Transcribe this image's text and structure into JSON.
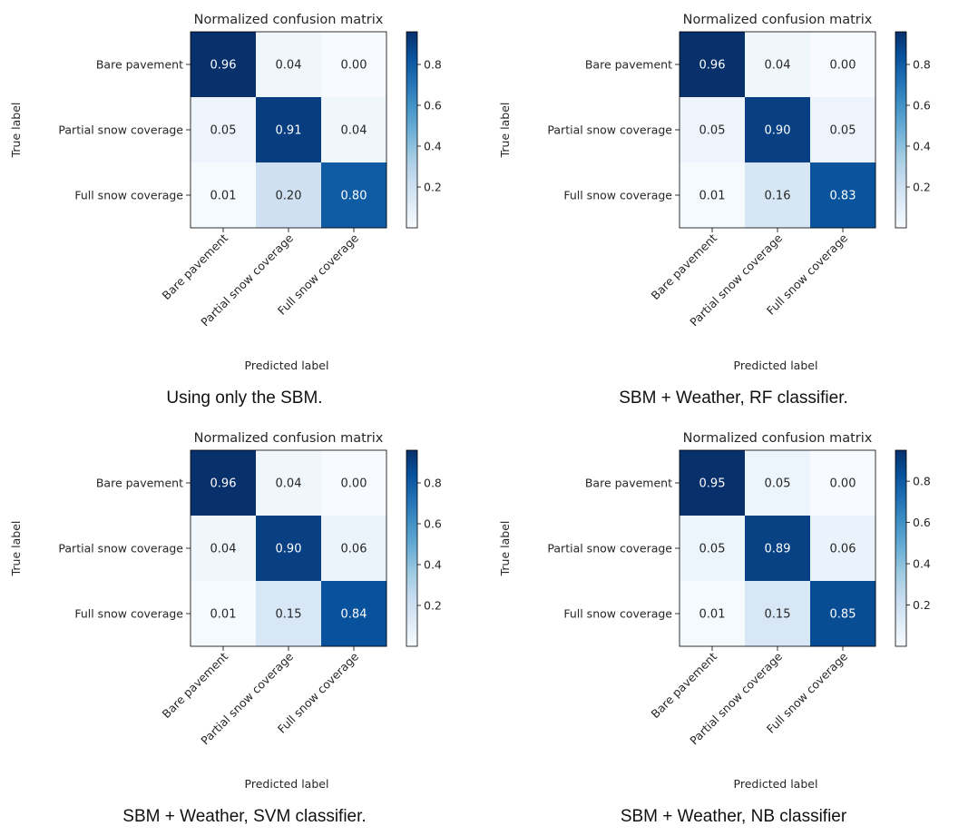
{
  "chart_data": [
    {
      "type": "heatmap",
      "title": "Normalized confusion matrix",
      "caption": "Using only the SBM.",
      "xlabel": "Predicted label",
      "ylabel": "True label",
      "x_categories": [
        "Bare pavement",
        "Partial snow coverage",
        "Full snow coverage"
      ],
      "y_categories": [
        "Bare pavement",
        "Partial snow coverage",
        "Full snow coverage"
      ],
      "values": [
        [
          0.96,
          0.04,
          0.0
        ],
        [
          0.05,
          0.91,
          0.04
        ],
        [
          0.01,
          0.2,
          0.8
        ]
      ],
      "colorbar": {
        "colormap": "Blues",
        "range": [
          0.0,
          0.96
        ],
        "ticks": [
          "0.2",
          "0.4",
          "0.6",
          "0.8"
        ]
      }
    },
    {
      "type": "heatmap",
      "title": "Normalized confusion matrix",
      "caption": "SBM + Weather, RF classifier.",
      "xlabel": "Predicted label",
      "ylabel": "True label",
      "x_categories": [
        "Bare pavement",
        "Partial snow coverage",
        "Full snow coverage"
      ],
      "y_categories": [
        "Bare pavement",
        "Partial snow coverage",
        "Full snow coverage"
      ],
      "values": [
        [
          0.96,
          0.04,
          0.0
        ],
        [
          0.05,
          0.9,
          0.05
        ],
        [
          0.01,
          0.16,
          0.83
        ]
      ],
      "colorbar": {
        "colormap": "Blues",
        "range": [
          0.0,
          0.96
        ],
        "ticks": [
          "0.2",
          "0.4",
          "0.6",
          "0.8"
        ]
      }
    },
    {
      "type": "heatmap",
      "title": "Normalized confusion matrix",
      "caption": "SBM + Weather, SVM classifier.",
      "xlabel": "Predicted label",
      "ylabel": "True label",
      "x_categories": [
        "Bare pavement",
        "Partial snow coverage",
        "Full snow coverage"
      ],
      "y_categories": [
        "Bare pavement",
        "Partial snow coverage",
        "Full snow coverage"
      ],
      "values": [
        [
          0.96,
          0.04,
          0.0
        ],
        [
          0.04,
          0.9,
          0.06
        ],
        [
          0.01,
          0.15,
          0.84
        ]
      ],
      "colorbar": {
        "colormap": "Blues",
        "range": [
          0.0,
          0.96
        ],
        "ticks": [
          "0.2",
          "0.4",
          "0.6",
          "0.8"
        ]
      }
    },
    {
      "type": "heatmap",
      "title": "Normalized confusion matrix",
      "caption": "SBM + Weather, NB classifier",
      "xlabel": "Predicted label",
      "ylabel": "True label",
      "x_categories": [
        "Bare pavement",
        "Partial snow coverage",
        "Full snow coverage"
      ],
      "y_categories": [
        "Bare pavement",
        "Partial snow coverage",
        "Full snow coverage"
      ],
      "values": [
        [
          0.95,
          0.05,
          0.0
        ],
        [
          0.05,
          0.89,
          0.06
        ],
        [
          0.01,
          0.15,
          0.85
        ]
      ],
      "colorbar": {
        "colormap": "Blues",
        "range": [
          0.0,
          0.95
        ],
        "ticks": [
          "0.2",
          "0.4",
          "0.6",
          "0.8"
        ]
      }
    }
  ]
}
